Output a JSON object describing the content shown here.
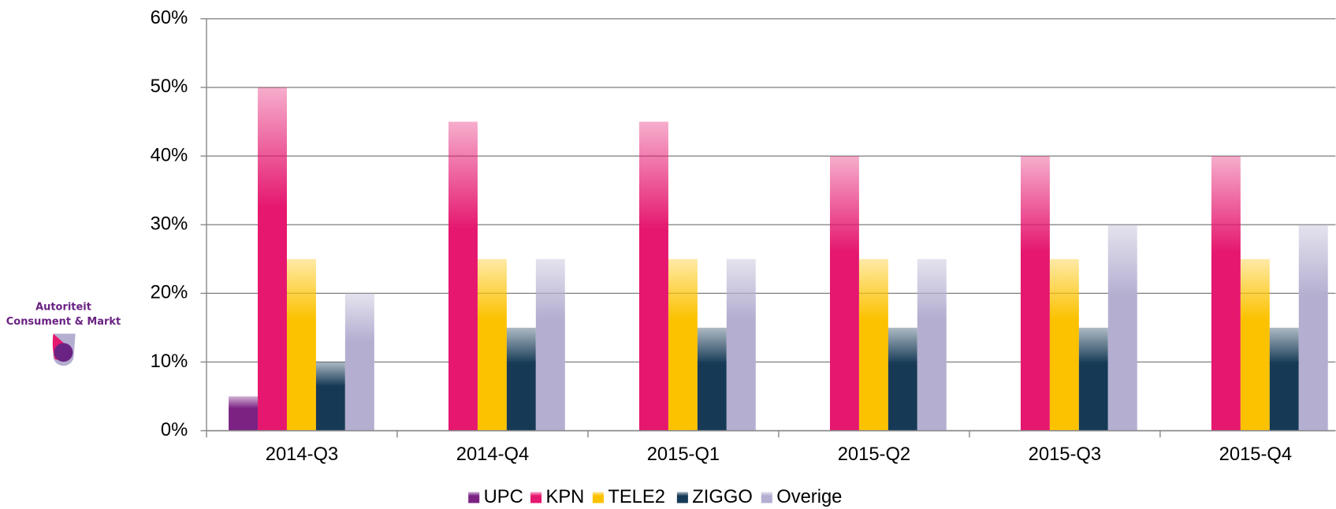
{
  "logo": {
    "line1": "Autoriteit",
    "line2": "Consument & Markt"
  },
  "chart_data": {
    "type": "bar",
    "categories": [
      "2014-Q3",
      "2014-Q4",
      "2015-Q1",
      "2015-Q2",
      "2015-Q3",
      "2015-Q4"
    ],
    "series": [
      {
        "name": "UPC",
        "color": "#7b2283",
        "values": [
          5,
          0,
          0,
          0,
          0,
          0
        ]
      },
      {
        "name": "KPN",
        "color": "#e5176f",
        "values": [
          50,
          45,
          45,
          40,
          40,
          40
        ]
      },
      {
        "name": "TELE2",
        "color": "#fcc200",
        "values": [
          25,
          25,
          25,
          25,
          25,
          25
        ]
      },
      {
        "name": "ZIGGO",
        "color": "#163a56",
        "values": [
          10,
          15,
          15,
          15,
          15,
          15
        ]
      },
      {
        "name": "Overige",
        "color": "#b4aed0",
        "values": [
          20,
          25,
          25,
          25,
          30,
          30
        ]
      }
    ],
    "ylim": [
      0,
      60
    ],
    "yticks": [
      {
        "value": 0,
        "label": "0%"
      },
      {
        "value": 10,
        "label": "10%"
      },
      {
        "value": 20,
        "label": "20%"
      },
      {
        "value": 30,
        "label": "30%"
      },
      {
        "value": 40,
        "label": "40%"
      },
      {
        "value": 50,
        "label": "50%"
      },
      {
        "value": 60,
        "label": "60%"
      }
    ],
    "grid": true,
    "legend": "bottom"
  }
}
